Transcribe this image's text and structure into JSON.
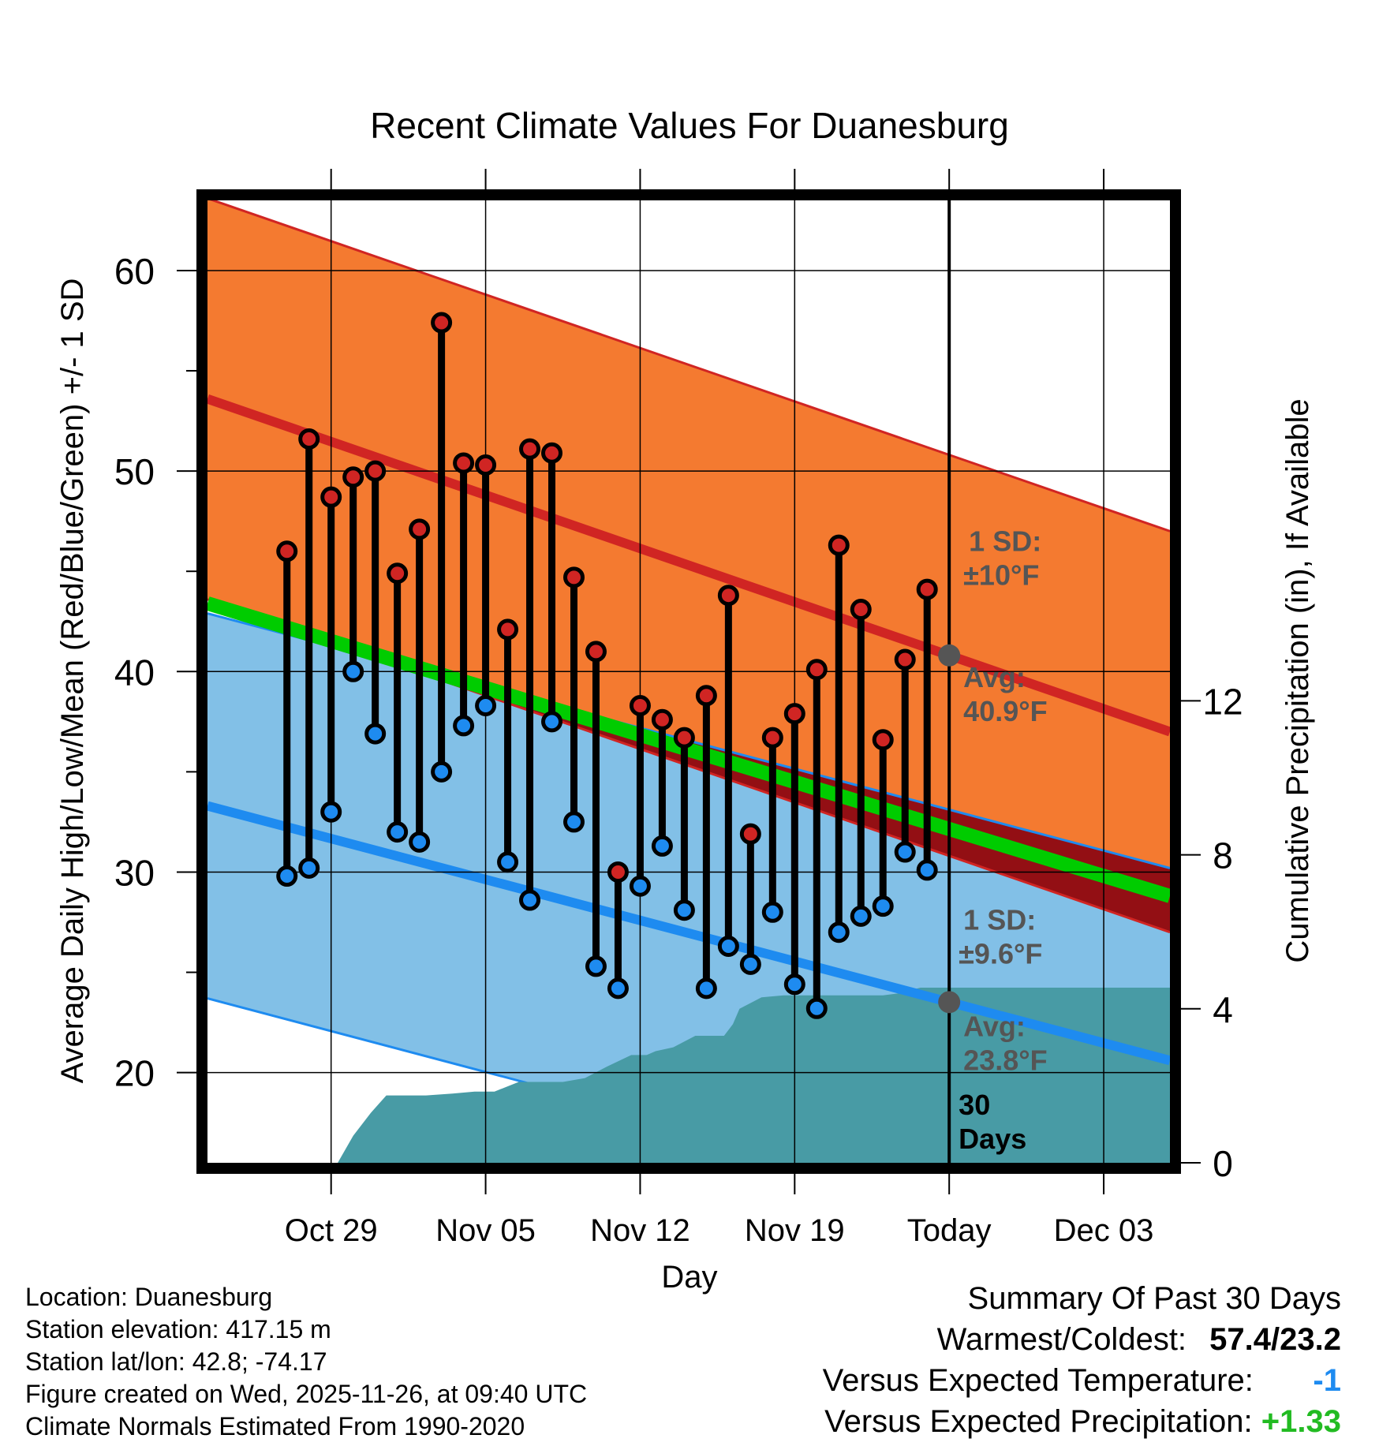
{
  "chart_data": {
    "type": "line",
    "title": "Recent Climate Values For Duanesburg",
    "xlabel": "Day",
    "ylabel": "Average Daily High/Low/Mean (Red/Blue/Green) +/- 1 SD",
    "y2label": "Cumulative Precipitation (in), If Available",
    "ylim": [
      15.5,
      63.5
    ],
    "y2lim": [
      0,
      25
    ],
    "xlim": [
      -3.6,
      40
    ],
    "y_ticks": [
      20,
      30,
      40,
      50,
      60
    ],
    "y2_ticks": [
      0,
      4,
      8,
      12
    ],
    "x_ticks": [
      {
        "day": 2,
        "label": "Oct 29"
      },
      {
        "day": 9,
        "label": "Nov 05"
      },
      {
        "day": 16,
        "label": "Nov 12"
      },
      {
        "day": 23,
        "label": "Nov 19"
      },
      {
        "day": 30,
        "label": "Today"
      },
      {
        "day": 37,
        "label": "Dec 03"
      }
    ],
    "today_day": 30,
    "normals": {
      "high_start": 53.6,
      "high_end": 37.0,
      "high_sd": 10.0,
      "low_start": 33.3,
      "low_end": 20.6,
      "low_sd": 9.6,
      "mean_start": 43.4,
      "mean_end": 28.8
    },
    "days": [
      0,
      1,
      2,
      3,
      4,
      5,
      6,
      7,
      8,
      9,
      10,
      11,
      12,
      13,
      14,
      15,
      16,
      17,
      18,
      19,
      20,
      21,
      22,
      23,
      24,
      25,
      26,
      27,
      28,
      29
    ],
    "highs": [
      46.0,
      51.6,
      48.7,
      49.7,
      50.0,
      44.9,
      47.1,
      57.4,
      50.4,
      50.3,
      42.1,
      51.1,
      50.9,
      44.7,
      41.0,
      30.0,
      38.3,
      37.6,
      36.7,
      38.8,
      43.8,
      31.9,
      36.7,
      37.9,
      40.1,
      46.3,
      43.1,
      36.6,
      40.6,
      44.1
    ],
    "lows": [
      29.8,
      30.2,
      33.0,
      40.0,
      36.9,
      32.0,
      31.5,
      35.0,
      37.3,
      38.3,
      30.5,
      28.6,
      37.5,
      32.5,
      25.3,
      24.2,
      29.3,
      31.3,
      28.1,
      24.2,
      26.3,
      25.4,
      28.0,
      24.4,
      23.2,
      27.0,
      27.8,
      28.3,
      31.0,
      30.1
    ],
    "precip_x": [
      2.3,
      3.0,
      3.8,
      4.5,
      5.5,
      6.3,
      7.5,
      8.5,
      9.4,
      10.5,
      11.5,
      12.5,
      13.5,
      14.5,
      15.6,
      16.3,
      16.7,
      17.5,
      18.5,
      19.0,
      19.8,
      20.2,
      20.5,
      21.5,
      22.5,
      23.5,
      24.5,
      25.5,
      26.5,
      27.0,
      27.7,
      28.0,
      28.7,
      40.0
    ],
    "precip_y": [
      0,
      0.7,
      1.3,
      1.75,
      1.75,
      1.75,
      1.8,
      1.85,
      1.85,
      2.1,
      2.1,
      2.1,
      2.2,
      2.5,
      2.8,
      2.8,
      2.9,
      3.0,
      3.3,
      3.3,
      3.3,
      3.6,
      4.0,
      4.3,
      4.35,
      4.35,
      4.35,
      4.35,
      4.35,
      4.35,
      4.4,
      4.45,
      4.55,
      4.55
    ],
    "annotations": {
      "high_sd_label": "1 SD:",
      "high_sd_value": "±10°F",
      "high_avg_label": "Avg:",
      "high_avg_value": "40.9°F",
      "low_sd_label": "1 SD:",
      "low_sd_value": "±9.6°F",
      "low_avg_label": "Avg:",
      "low_avg_value": "23.8°F",
      "period_value": "30",
      "period_unit": "Days"
    },
    "colors": {
      "high_band": "#f47a30",
      "high_line": "#d02523",
      "low_band": "#82c0e7",
      "low_line": "#1e8bf0",
      "mean_line": "#00cc00",
      "overlap_band": "#930f14",
      "precip": "#489ba5",
      "annotation": "#555555",
      "frame": "#000000"
    }
  },
  "info": {
    "location": "Location: Duanesburg",
    "elevation": "Station elevation: 417.15 m",
    "latlon": "Station lat/lon: 42.8; -74.17",
    "created": "Figure created on Wed, 2025-11-26, at 09:40 UTC",
    "normals": "Climate Normals Estimated From 1990-2020"
  },
  "summary": {
    "title": "Summary Of Past 30 Days",
    "warm_cold_label": "Warmest/Coldest:",
    "warm_cold_value": "57.4/23.2",
    "temp_label": "Versus Expected Temperature:",
    "temp_value": "-1",
    "temp_color": "#1e8bf0",
    "precip_label": "Versus Expected Precipitation:",
    "precip_value": "+1.33",
    "precip_color": "#22bb22"
  }
}
